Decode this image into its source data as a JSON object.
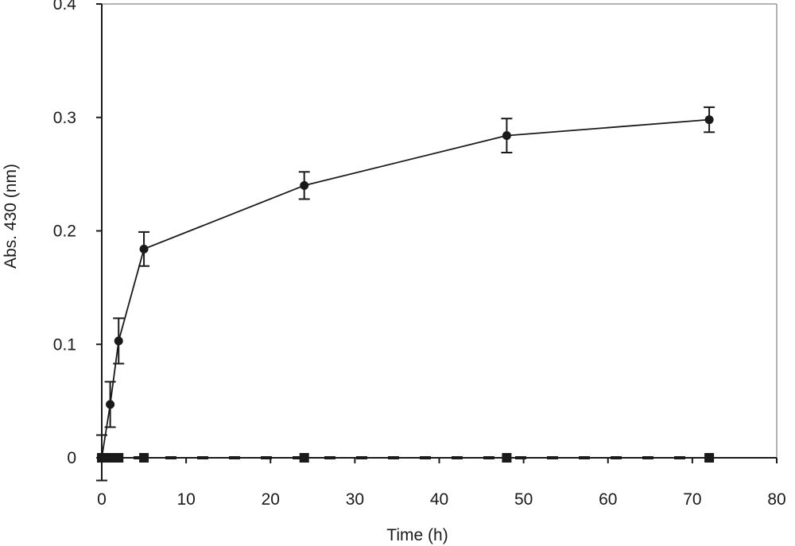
{
  "chart_data": {
    "type": "scatter",
    "title": "",
    "xlabel": "Time (h)",
    "ylabel": "Abs. 430 (nm)",
    "xlim": [
      0,
      80
    ],
    "ylim": [
      0,
      0.4
    ],
    "x_ticks": [
      "0",
      "10",
      "20",
      "30",
      "40",
      "50",
      "60",
      "70",
      "80"
    ],
    "y_ticks": [
      "0",
      "0.1",
      "0.2",
      "0.3",
      "0.4"
    ],
    "grid": false,
    "legend": "none",
    "series": [
      {
        "marker": "circle",
        "line": "solid",
        "color": "#1a1a1a",
        "x": [
          0,
          1,
          2,
          5,
          24,
          48,
          72
        ],
        "y": [
          0.0,
          0.047,
          0.103,
          0.184,
          0.24,
          0.284,
          0.298
        ],
        "error": [
          0.02,
          0.02,
          0.02,
          0.015,
          0.012,
          0.015,
          0.011
        ]
      },
      {
        "marker": "square",
        "line": "dashed",
        "color": "#1a1a1a",
        "x": [
          0,
          1,
          2,
          5,
          24,
          48,
          72
        ],
        "y": [
          0.0,
          0.0,
          0.0,
          0.0,
          0.0,
          0.0,
          0.0
        ]
      }
    ]
  }
}
